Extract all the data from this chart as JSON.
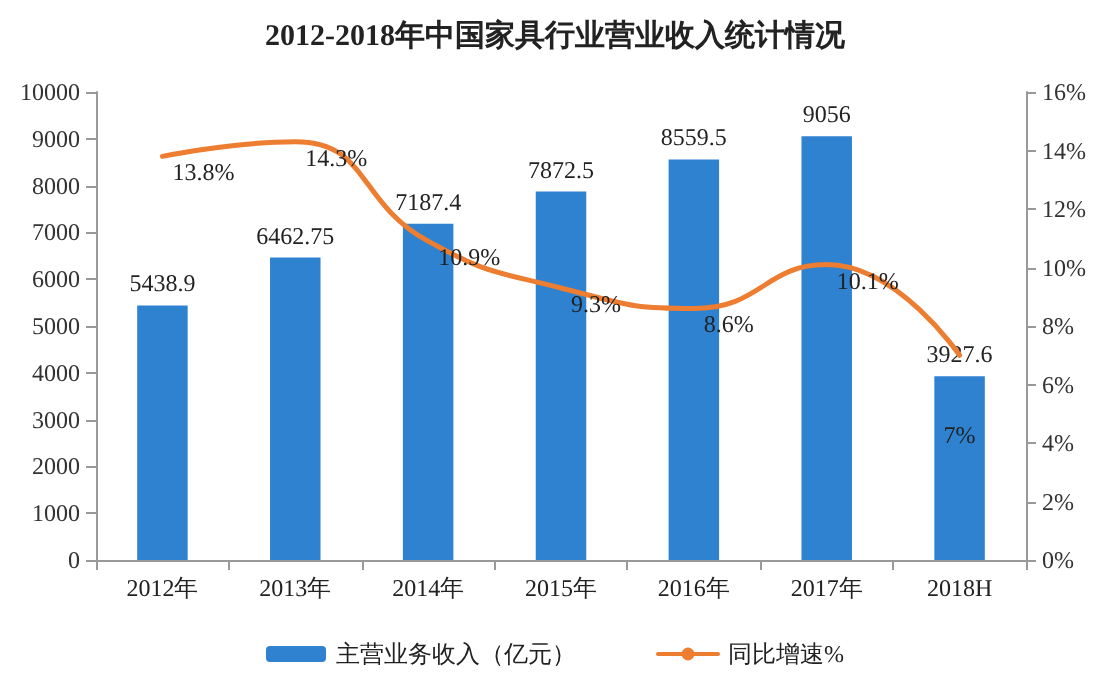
{
  "chart_data": {
    "type": "bar",
    "title": "2012-2018年中国家具行业营业收入统计情况",
    "categories": [
      "2012年",
      "2013年",
      "2014年",
      "2015年",
      "2016年",
      "2017年",
      "2018H"
    ],
    "series": [
      {
        "name": "主营业务收入（亿元）",
        "color": "#2e82cf",
        "values": [
          5438.9,
          6462.75,
          7187.4,
          7872.5,
          8559.5,
          9056,
          3927.6
        ],
        "value_labels": [
          "5438.9",
          "6462.75",
          "7187.4",
          "7872.5",
          "8559.5",
          "9056",
          "3927.6"
        ]
      },
      {
        "name": "同比增速%",
        "type": "line",
        "axis": "y2",
        "color": "#ed7d31",
        "values": [
          13.8,
          14.3,
          10.9,
          9.3,
          8.6,
          10.1,
          7
        ],
        "value_labels": [
          "13.8%",
          "14.3%",
          "10.9%",
          "9.3%",
          "8.6%",
          "10.1%",
          "7%"
        ]
      }
    ],
    "ylim": [
      0,
      10000
    ],
    "yticks": [
      0,
      1000,
      2000,
      3000,
      4000,
      5000,
      6000,
      7000,
      8000,
      9000,
      10000
    ],
    "y2lim": [
      0,
      16
    ],
    "y2ticks": [
      {
        "value": 0,
        "label": "0%"
      },
      {
        "value": 2,
        "label": "2%"
      },
      {
        "value": 4,
        "label": "4%"
      },
      {
        "value": 6,
        "label": "6%"
      },
      {
        "value": 8,
        "label": "8%"
      },
      {
        "value": 10,
        "label": "10%"
      },
      {
        "value": 12,
        "label": "12%"
      },
      {
        "value": 14,
        "label": "14%"
      },
      {
        "value": 16,
        "label": "16%"
      }
    ],
    "grid": false,
    "legend": "bottom",
    "marker": "none",
    "line_style": "solid"
  }
}
